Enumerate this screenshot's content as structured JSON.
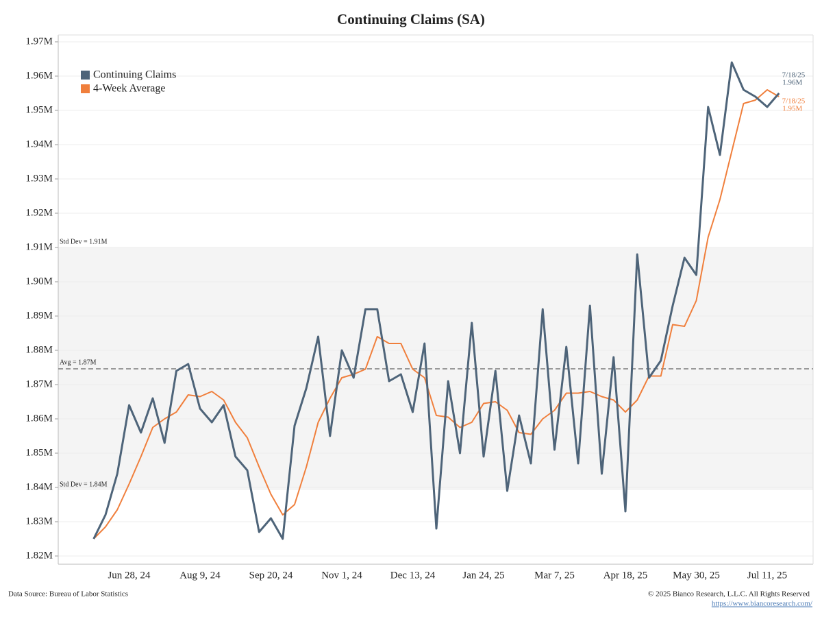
{
  "chart_data": {
    "type": "line",
    "title": "Continuing Claims (SA)",
    "categories": [
      null,
      null,
      null,
      "Jun 28, 24",
      null,
      null,
      null,
      null,
      null,
      "Aug 9, 24",
      null,
      null,
      null,
      null,
      null,
      "Sep 20, 24",
      null,
      null,
      null,
      null,
      null,
      "Nov 1, 24",
      null,
      null,
      null,
      null,
      null,
      "Dec 13, 24",
      null,
      null,
      null,
      null,
      null,
      "Jan 24, 25",
      null,
      null,
      null,
      null,
      null,
      "Mar 7, 25",
      null,
      null,
      null,
      null,
      null,
      "Apr 18, 25",
      null,
      null,
      null,
      null,
      null,
      "May 30, 25",
      null,
      null,
      null,
      null,
      null,
      "Jul 11, 25",
      null
    ],
    "series": [
      {
        "name": "Continuing Claims",
        "color": "#4e6479",
        "values": [
          1.825,
          1.832,
          1.844,
          1.864,
          1.856,
          1.866,
          1.853,
          1.874,
          1.876,
          1.863,
          1.859,
          1.864,
          1.849,
          1.845,
          1.827,
          1.831,
          1.825,
          1.858,
          1.869,
          1.884,
          1.855,
          1.88,
          1.872,
          1.892,
          1.892,
          1.871,
          1.873,
          1.862,
          1.882,
          1.828,
          1.871,
          1.85,
          1.888,
          1.849,
          1.874,
          1.839,
          1.861,
          1.847,
          1.892,
          1.851,
          1.881,
          1.847,
          1.893,
          1.844,
          1.878,
          1.833,
          1.908,
          1.872,
          1.877,
          1.893,
          1.907,
          1.902,
          1.951,
          1.937,
          1.964,
          1.956,
          1.954,
          1.951,
          1.955
        ],
        "last_label": {
          "date": "7/18/25",
          "text": "1.96M"
        }
      },
      {
        "name": "4-Week Average",
        "color": "#f07f3c",
        "values": [
          1.825,
          1.8285,
          1.8335,
          1.841,
          1.849,
          1.8575,
          1.86,
          1.862,
          1.867,
          1.8665,
          1.868,
          1.8655,
          1.859,
          1.8545,
          1.846,
          1.838,
          1.832,
          1.835,
          1.846,
          1.859,
          1.866,
          1.872,
          1.873,
          1.8745,
          1.884,
          1.882,
          1.882,
          1.8745,
          1.872,
          1.861,
          1.8605,
          1.8575,
          1.859,
          1.8645,
          1.865,
          1.8625,
          1.856,
          1.8555,
          1.86,
          1.8625,
          1.8675,
          1.8675,
          1.868,
          1.8665,
          1.8655,
          1.862,
          1.8655,
          1.8725,
          1.8725,
          1.8875,
          1.887,
          1.8945,
          1.913,
          1.924,
          1.938,
          1.952,
          1.953,
          1.956,
          1.954
        ],
        "last_label": {
          "date": "7/18/25",
          "text": "1.95M"
        }
      }
    ],
    "ylim": [
      1.8176,
      1.972
    ],
    "yticks": [
      {
        "value": 1.82,
        "label": "1.82M"
      },
      {
        "value": 1.83,
        "label": "1.83M"
      },
      {
        "value": 1.84,
        "label": "1.84M"
      },
      {
        "value": 1.85,
        "label": "1.85M"
      },
      {
        "value": 1.86,
        "label": "1.86M"
      },
      {
        "value": 1.87,
        "label": "1.87M"
      },
      {
        "value": 1.88,
        "label": "1.88M"
      },
      {
        "value": 1.89,
        "label": "1.89M"
      },
      {
        "value": 1.9,
        "label": "1.90M"
      },
      {
        "value": 1.91,
        "label": "1.91M"
      },
      {
        "value": 1.92,
        "label": "1.92M"
      },
      {
        "value": 1.93,
        "label": "1.93M"
      },
      {
        "value": 1.94,
        "label": "1.94M"
      },
      {
        "value": 1.95,
        "label": "1.95M"
      },
      {
        "value": 1.96,
        "label": "1.96M"
      },
      {
        "value": 1.97,
        "label": "1.97M"
      }
    ],
    "grid": true,
    "legend": "top-left",
    "band": {
      "upper": {
        "value": 1.91,
        "label": "Std Dev = 1.91M"
      },
      "lower": {
        "value": 1.8392,
        "label": "Std Dev = 1.84M"
      },
      "color": "#f4f4f4"
    },
    "average": {
      "value": 1.8746,
      "label": "Avg = 1.87M"
    },
    "source": "Data Source: Bureau of Labor Statistics",
    "copyright": "© 2025  Bianco Research, L.L.C. All Rights Reserved",
    "url": "https://www.biancoresearch.com/"
  }
}
